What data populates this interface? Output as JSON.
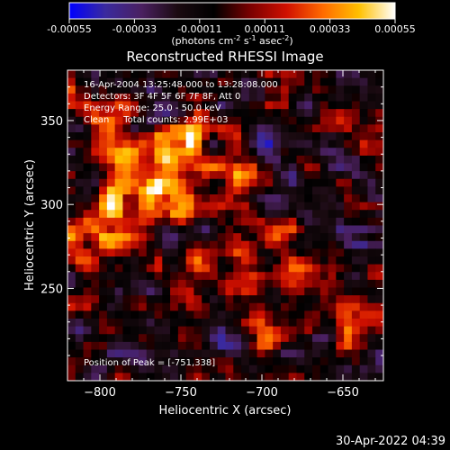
{
  "colorbar": {
    "tick_labels": [
      "-0.00055",
      "-0.00033",
      "-0.00011",
      "0.00011",
      "0.00033",
      "0.00055"
    ],
    "tick_values": [
      -0.00055,
      -0.00033,
      -0.00011,
      0.00011,
      0.00033,
      0.00055
    ],
    "range": [
      -0.00055,
      0.00055
    ],
    "unit_main": "(photons cm",
    "unit_sup1": "-2",
    "unit_mid": " s",
    "unit_sup2": "-1",
    "unit_end": " asec",
    "unit_sup3": "-2",
    "unit_close": ")",
    "colors": [
      "#0000ff",
      "#3a2a9e",
      "#4a2060",
      "#1a0a10",
      "#000000",
      "#7a0000",
      "#d01000",
      "#ff6a00",
      "#ffc000",
      "#ffffff"
    ]
  },
  "chart_data": {
    "type": "heatmap",
    "title": "Reconstructed RHESSI Image",
    "xlabel": "Heliocentric X (arcsec)",
    "ylabel": "Heliocentric Y (arcsec)",
    "xlim": [
      -820,
      -625
    ],
    "ylim": [
      195,
      380
    ],
    "x_ticks": [
      -800,
      -750,
      -700,
      -650
    ],
    "x_tick_labels": [
      "−800",
      "−750",
      "−700",
      "−650"
    ],
    "y_ticks": [
      250,
      300,
      350
    ],
    "y_tick_labels": [
      "250",
      "300",
      "350"
    ],
    "grid": false,
    "annotations": [
      "16-Apr-2004 13:25:48.000 to 13:28:08.000",
      "Detectors: 3F 4F 5F 6F 7F 8F, Att 0",
      "Energy Range: 25.0 - 50.0 keV",
      "Clean     Total counts: 2.99E+03"
    ],
    "peak_label": "Position of Peak = [-751,338]",
    "peak": [
      -751,
      338
    ],
    "bright_regions": [
      {
        "x": -751,
        "y": 338,
        "value": 0.00055
      },
      {
        "x": -778,
        "y": 322,
        "value": 0.0005
      },
      {
        "x": -808,
        "y": 278,
        "value": 0.00052
      },
      {
        "x": -790,
        "y": 298,
        "value": 0.00045
      },
      {
        "x": -760,
        "y": 300,
        "value": 0.0004
      },
      {
        "x": -735,
        "y": 262,
        "value": 0.00035
      },
      {
        "x": -708,
        "y": 286,
        "value": 0.00035
      },
      {
        "x": -718,
        "y": 318,
        "value": 0.0003
      },
      {
        "x": -683,
        "y": 262,
        "value": 0.00028
      },
      {
        "x": -693,
        "y": 225,
        "value": 0.0003
      },
      {
        "x": -648,
        "y": 232,
        "value": 0.00025
      },
      {
        "x": -760,
        "y": 245,
        "value": 0.00018
      },
      {
        "x": -640,
        "y": 345,
        "value": 0.0002
      },
      {
        "x": -798,
        "y": 355,
        "value": 0.00025
      }
    ]
  },
  "footer": {
    "timestamp": "30-Apr-2022 04:39"
  }
}
